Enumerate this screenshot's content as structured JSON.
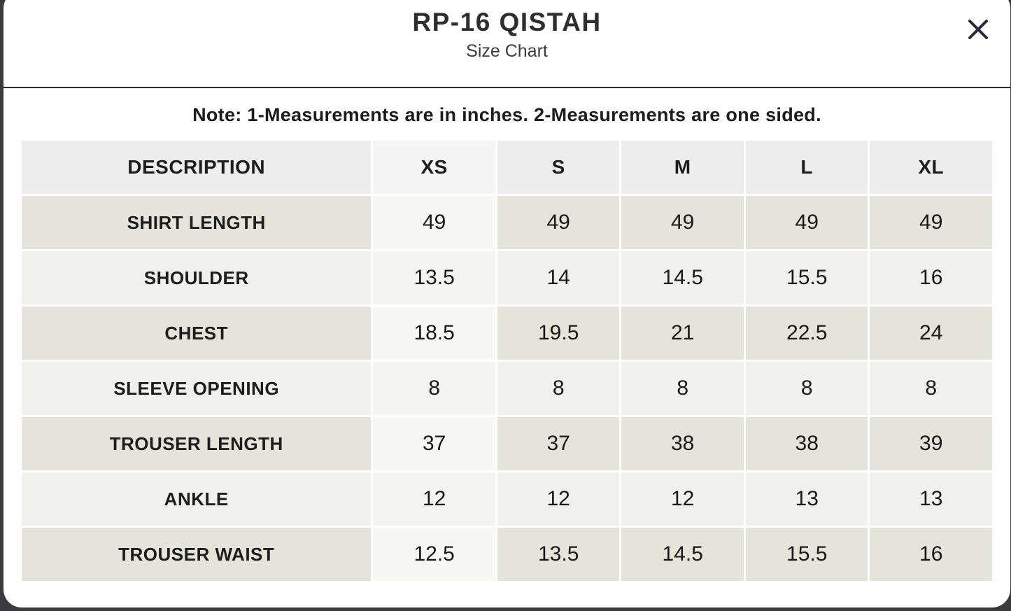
{
  "modal": {
    "title": "RP-16 QISTAH",
    "subtitle": "Size Chart",
    "note": "Note: 1-Measurements are in inches. 2-Measurements are one sided.",
    "close_icon": "x-close-icon"
  },
  "table": {
    "columns": [
      "DESCRIPTION",
      "XS",
      "S",
      "M",
      "L",
      "XL"
    ],
    "highlighted_column": "XS",
    "rows": [
      {
        "label": "SHIRT LENGTH",
        "values": [
          "49",
          "49",
          "49",
          "49",
          "49"
        ]
      },
      {
        "label": "SHOULDER",
        "values": [
          "13.5",
          "14",
          "14.5",
          "15.5",
          "16"
        ]
      },
      {
        "label": "CHEST",
        "values": [
          "18.5",
          "19.5",
          "21",
          "22.5",
          "24"
        ]
      },
      {
        "label": "SLEEVE OPENING",
        "values": [
          "8",
          "8",
          "8",
          "8",
          "8"
        ]
      },
      {
        "label": "TROUSER LENGTH",
        "values": [
          "37",
          "37",
          "38",
          "38",
          "39"
        ]
      },
      {
        "label": "ANKLE",
        "values": [
          "12",
          "12",
          "12",
          "13",
          "13"
        ]
      },
      {
        "label": "TROUSER WAIST",
        "values": [
          "12.5",
          "13.5",
          "14.5",
          "15.5",
          "16"
        ]
      }
    ]
  },
  "colors": {
    "overlay_bg": "#3a3a40",
    "divider": "#2b2b2b",
    "title_color": "#2e2e2e",
    "subtitle_color": "#3c3c3c",
    "text_dark": "#1d1d1d",
    "close_icon_color": "#252b38",
    "header_cell_bg": "#ededed",
    "header_cell_hl_bg": "#f5f5f5",
    "row_beige": "#e4e4da",
    "beige_hl": "#f7f7f4",
    "row_light": "#f0f0ef",
    "light_hl": "#f4f4f3"
  }
}
